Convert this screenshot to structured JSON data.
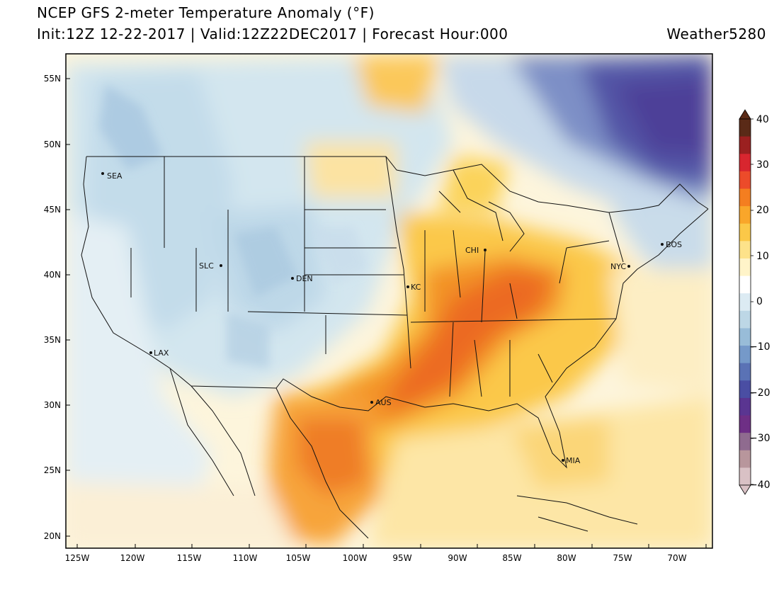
{
  "header": {
    "title": "NCEP GFS 2-meter Temperature Anomaly (°F)",
    "subtitle": "Init:12Z 12-22-2017 | Valid:12Z22DEC2017 | Forecast Hour:000",
    "brand": "Weather5280"
  },
  "axes": {
    "lat_labels": [
      "55N",
      "50N",
      "45N",
      "40N",
      "35N",
      "30N",
      "25N",
      "20N"
    ],
    "lon_labels": [
      "125W",
      "120W",
      "115W",
      "110W",
      "105W",
      "100W",
      "95W",
      "90W",
      "85W",
      "80W",
      "75W",
      "70W"
    ]
  },
  "cities": [
    {
      "name": "SEA"
    },
    {
      "name": "SLC"
    },
    {
      "name": "DEN"
    },
    {
      "name": "KC"
    },
    {
      "name": "CHI"
    },
    {
      "name": "NYC"
    },
    {
      "name": "BOS"
    },
    {
      "name": "LAX"
    },
    {
      "name": "AUS"
    },
    {
      "name": "MIA"
    }
  ],
  "colorbar": {
    "labels": [
      "40",
      "30",
      "20",
      "10",
      "0",
      "−10",
      "−20",
      "−30",
      "−40"
    ],
    "colors": [
      "#5a2a17",
      "#9b2020",
      "#d8262f",
      "#ec4b2a",
      "#f47e20",
      "#f9a62a",
      "#fbc848",
      "#fde28a",
      "#fff4c9",
      "#ffffff",
      "#dcebf3",
      "#bdd7e6",
      "#98bcd8",
      "#7599c9",
      "#5a72b5",
      "#4a4ea3",
      "#5a3591",
      "#6e2f85",
      "#8f6b8f",
      "#b8969c",
      "#d9c1c5"
    ]
  },
  "legend_colors": {
    "neutral": "#fdf7e3",
    "cool": "#d3e5ef",
    "cold": "#4d4fa3",
    "warm": "#fbc848",
    "hot": "#ea6a22"
  }
}
